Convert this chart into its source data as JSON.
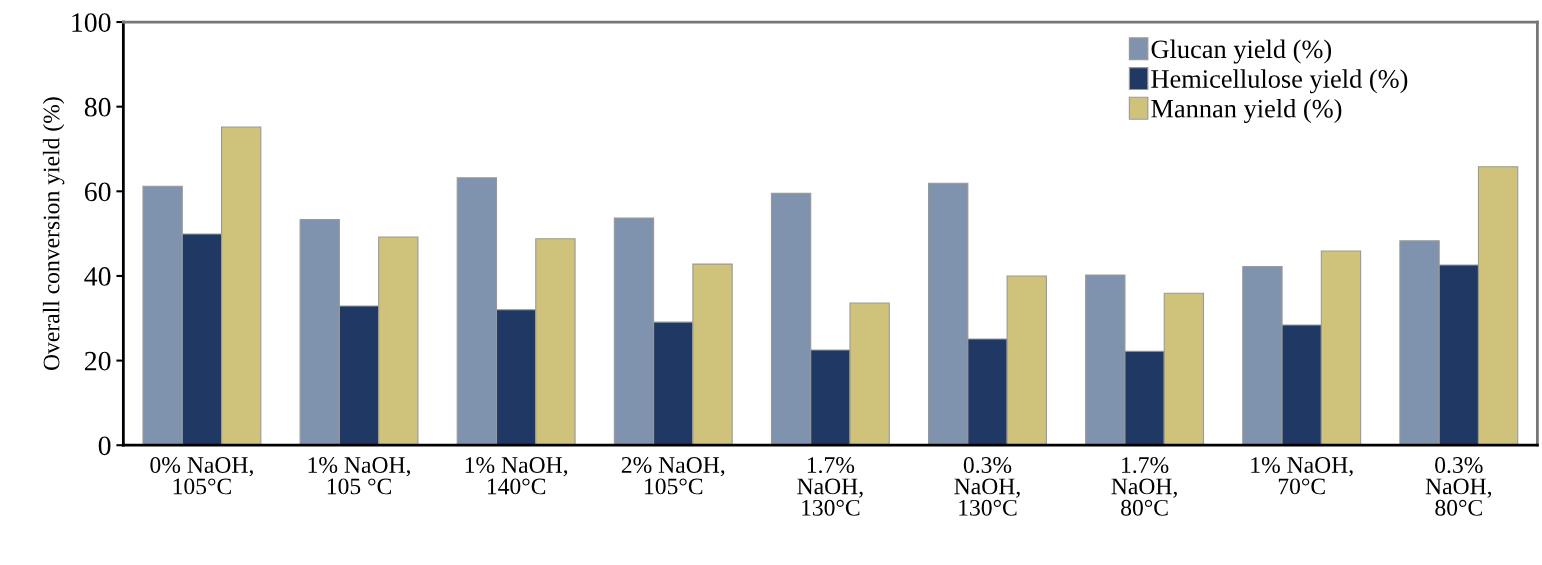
{
  "chart_data": {
    "type": "bar",
    "ylabel": "Overall conversion yield (%)",
    "categories": [
      "0% NaOH,\n105°C",
      "1% NaOH,\n105 °C",
      "1% NaOH,\n140°C",
      "2% NaOH,\n105°C",
      "1.7%\nNaOH,\n130°C",
      "0.3%\nNaOH,\n130°C",
      "1.7%\nNaOH,\n80°C",
      "1% NaOH,\n70°C",
      "0.3%\nNaOH,\n80°C"
    ],
    "series": [
      {
        "name": "Glucan yield (%)",
        "color": "#7f93ae",
        "values": [
          61.2,
          53.3,
          63.2,
          53.7,
          59.5,
          61.9,
          40.2,
          42.2,
          48.3
        ]
      },
      {
        "name": "Hemicellulose yield (%)",
        "color": "#1f3864",
        "values": [
          49.9,
          32.9,
          32.0,
          29.1,
          22.5,
          25.1,
          22.2,
          28.4,
          42.6
        ]
      },
      {
        "name": "Mannan yield (%)",
        "color": "#cfc27a",
        "values": [
          75.2,
          49.2,
          48.8,
          42.8,
          33.6,
          40.0,
          35.9,
          45.9,
          65.8
        ]
      }
    ],
    "ylim": [
      0,
      100
    ],
    "yticks": [
      0,
      20,
      40,
      60,
      80,
      100
    ],
    "grid": false,
    "legend": "top right"
  }
}
